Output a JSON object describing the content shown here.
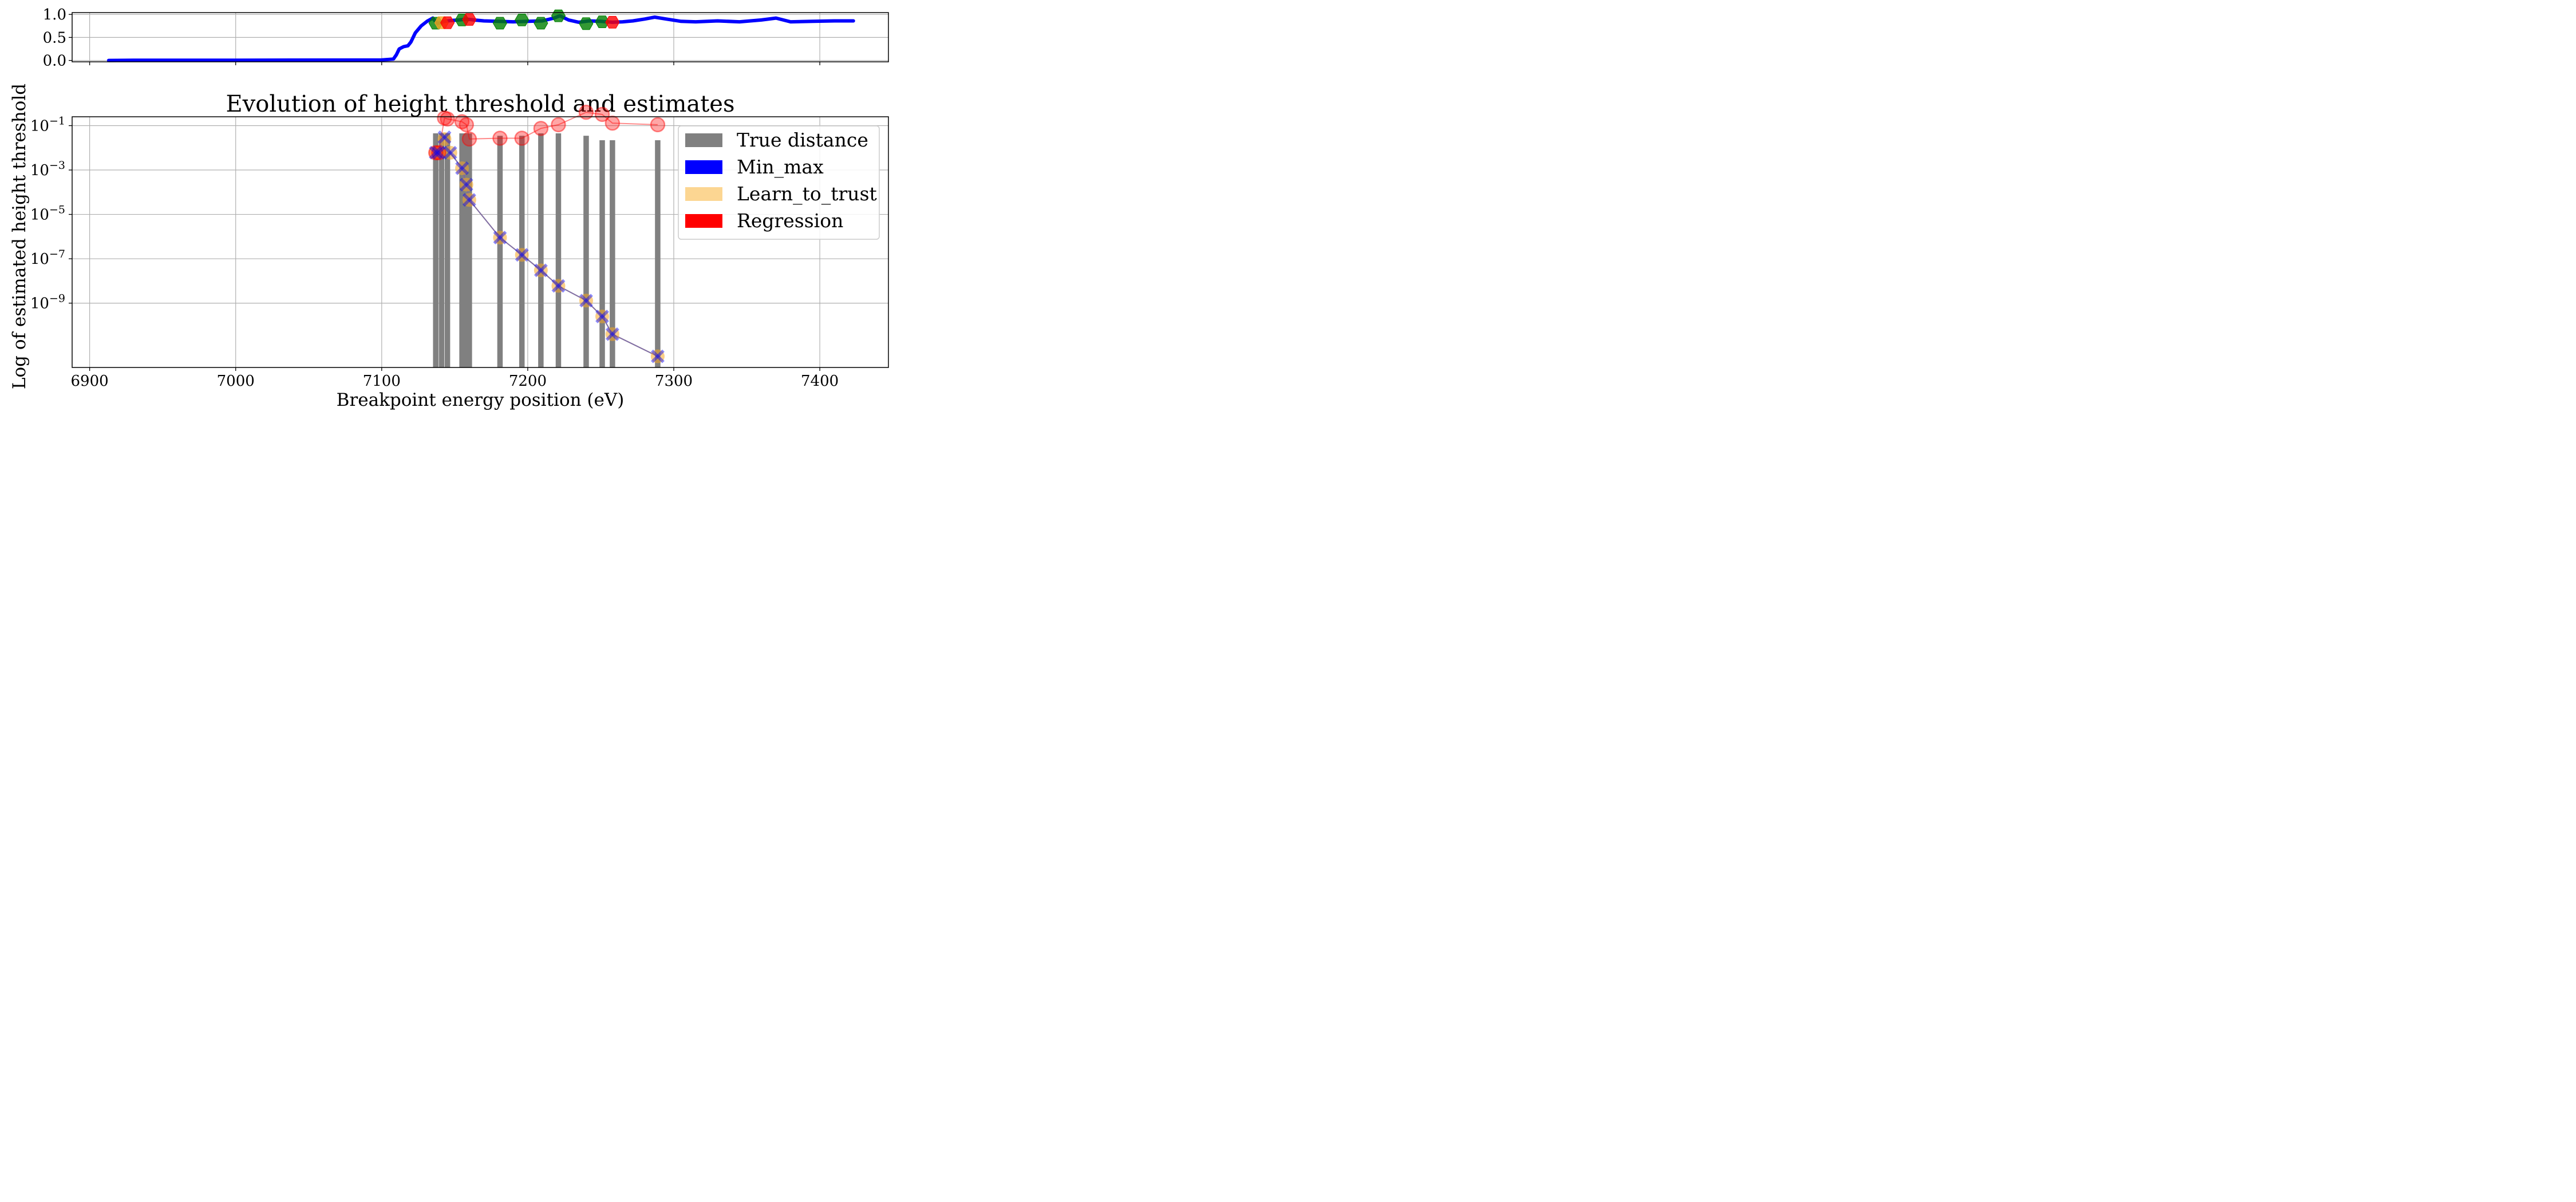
{
  "chart_data": [
    {
      "type": "line",
      "panel": "top",
      "title": "",
      "xlabel": "",
      "ylabel": "",
      "xlim": [
        6888,
        7447
      ],
      "ylim": [
        -0.03,
        1.04
      ],
      "grid": true,
      "yticks": [
        0.0,
        0.5,
        1.0
      ],
      "ytick_labels": [
        "0.0",
        "0.5",
        "1.0"
      ],
      "xticks": [
        6900,
        7000,
        7100,
        7200,
        7300,
        7400
      ],
      "series": [
        {
          "color": "#0000ff",
          "x": [
            6913,
            6930,
            7000,
            7100,
            7108,
            7110,
            7112,
            7115,
            7118,
            7120,
            7123,
            7127,
            7131,
            7135,
            7138,
            7140,
            7143,
            7148,
            7153,
            7158,
            7163,
            7170,
            7180,
            7190,
            7200,
            7210,
            7218,
            7222,
            7228,
            7235,
            7242,
            7250,
            7258,
            7265,
            7272,
            7280,
            7287,
            7295,
            7305,
            7315,
            7330,
            7345,
            7360,
            7370,
            7380,
            7395,
            7410,
            7423
          ],
          "y": [
            0.0,
            0.005,
            0.005,
            0.01,
            0.03,
            0.12,
            0.25,
            0.3,
            0.32,
            0.4,
            0.6,
            0.75,
            0.85,
            0.92,
            0.8,
            0.82,
            0.85,
            0.87,
            0.88,
            0.9,
            0.88,
            0.86,
            0.85,
            0.84,
            0.85,
            0.86,
            0.92,
            0.97,
            0.88,
            0.83,
            0.86,
            0.85,
            0.83,
            0.84,
            0.86,
            0.9,
            0.94,
            0.9,
            0.85,
            0.84,
            0.86,
            0.84,
            0.88,
            0.92,
            0.84,
            0.85,
            0.86,
            0.86
          ]
        }
      ],
      "markers": [
        {
          "x": 7137,
          "y": 0.81,
          "color": "#008000"
        },
        {
          "x": 7141,
          "y": 0.82,
          "color": "#f5a623"
        },
        {
          "x": 7145,
          "y": 0.82,
          "color": "#ff0000"
        },
        {
          "x": 7155,
          "y": 0.88,
          "color": "#008000"
        },
        {
          "x": 7160,
          "y": 0.89,
          "color": "#ff0000"
        },
        {
          "x": 7181,
          "y": 0.81,
          "color": "#008000"
        },
        {
          "x": 7196,
          "y": 0.88,
          "color": "#008000"
        },
        {
          "x": 7209,
          "y": 0.81,
          "color": "#008000"
        },
        {
          "x": 7221,
          "y": 0.97,
          "color": "#008000"
        },
        {
          "x": 7240,
          "y": 0.8,
          "color": "#008000"
        },
        {
          "x": 7251,
          "y": 0.84,
          "color": "#008000"
        },
        {
          "x": 7258,
          "y": 0.83,
          "color": "#ff0000"
        }
      ]
    },
    {
      "type": "bar",
      "panel": "bottom",
      "title": "Evolution of height threshold and estimates",
      "xlabel": "Breakpoint energy position (eV)",
      "ylabel": "Log of estimated height threshold",
      "xlim": [
        6888,
        7447
      ],
      "ylim_log10": [
        -11.9,
        -0.6
      ],
      "yscale": "log",
      "grid": true,
      "xticks": [
        6900,
        7000,
        7100,
        7200,
        7300,
        7400
      ],
      "xtick_labels": [
        "6900",
        "7000",
        "7100",
        "7200",
        "7300",
        "7400"
      ],
      "yticks_log10": [
        -1,
        -3,
        -5,
        -7,
        -9
      ],
      "ytick_mantissa": "10",
      "ytick_exponents": [
        "−1",
        "−3",
        "−5",
        "−7",
        "−9"
      ],
      "legend": {
        "placement": "upper right",
        "entries": [
          {
            "label": "True distance",
            "color": "#808080"
          },
          {
            "label": "Min_max",
            "color": "#0000ff"
          },
          {
            "label": "Learn_to_trust",
            "color": "#fcd692"
          },
          {
            "label": "Regression",
            "color": "#ff0000"
          }
        ]
      },
      "bars": {
        "name": "True distance",
        "color": "#808080",
        "x": [
          7137,
          7141,
          7145,
          7155,
          7158,
          7160,
          7181,
          7196,
          7209,
          7221,
          7240,
          7251,
          7258,
          7289
        ],
        "values": [
          0.045,
          0.045,
          0.045,
          0.045,
          0.045,
          0.045,
          0.035,
          0.035,
          0.045,
          0.045,
          0.035,
          0.022,
          0.022,
          0.022
        ]
      },
      "series": [
        {
          "name": "Min_max",
          "color": "#0000ff",
          "marker": "x",
          "x": [
            7137,
            7139,
            7143,
            7147,
            7155,
            7158,
            7160,
            7181,
            7196,
            7209,
            7221,
            7240,
            7251,
            7258,
            7289
          ],
          "y": [
            0.006,
            0.006,
            0.03,
            0.006,
            0.0012,
            0.00022,
            4.5e-05,
            9e-07,
            1.5e-07,
            3e-08,
            6e-09,
            1.3e-09,
            2.5e-10,
            4e-11,
            4e-12
          ]
        },
        {
          "name": "Learn_to_trust",
          "color": "#fcd692",
          "marker": "o",
          "x": [
            7137,
            7139,
            7143,
            7147,
            7155,
            7158,
            7160,
            7181,
            7196,
            7209,
            7221,
            7240,
            7251,
            7258,
            7289
          ],
          "y": [
            0.006,
            0.006,
            0.025,
            0.006,
            0.0012,
            0.00022,
            4.5e-05,
            9e-07,
            1.5e-07,
            3e-08,
            6e-09,
            1.3e-09,
            2.5e-10,
            4e-11,
            4e-12
          ]
        },
        {
          "name": "Regression",
          "color": "#ff0000",
          "marker": "o",
          "x": [
            7137,
            7139,
            7143,
            7145,
            7155,
            7158,
            7160,
            7181,
            7196,
            7209,
            7221,
            7240,
            7251,
            7258,
            7289
          ],
          "y": [
            0.006,
            0.006,
            0.22,
            0.2,
            0.15,
            0.11,
            0.025,
            0.027,
            0.027,
            0.075,
            0.11,
            0.4,
            0.32,
            0.13,
            0.11
          ]
        }
      ]
    }
  ]
}
